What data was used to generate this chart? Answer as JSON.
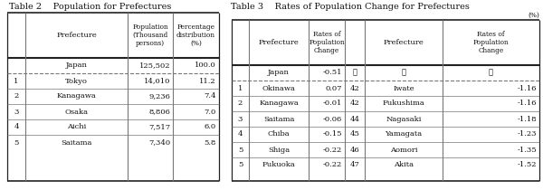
{
  "table2_title": "Table 2    Population for Prefectures",
  "table3_title": "Table 3    Rates of Population Change for Prefectures",
  "table3_unit": "(%)",
  "table2_rows_body": [
    [
      "1",
      "Tokyo",
      "14,010",
      "11.2"
    ],
    [
      "2",
      "Kanagawa",
      "9,236",
      "7.4"
    ],
    [
      "3",
      "Osaka",
      "8,806",
      "7.0"
    ],
    [
      "4",
      "Aichi",
      "7,517",
      "6.0"
    ],
    [
      "5",
      "Saitama",
      "7,340",
      "5.8"
    ]
  ],
  "table3_rows_body": [
    [
      "1",
      "Okinawa",
      "0.07",
      "42",
      "Iwate",
      "-1.16"
    ],
    [
      "2",
      "Kanagawa",
      "-0.01",
      "42",
      "Fukushima",
      "-1.16"
    ],
    [
      "3",
      "Saitama",
      "-0.06",
      "44",
      "Nagasaki",
      "-1.18"
    ],
    [
      "4",
      "Chiba",
      "-0.15",
      "45",
      "Yamagata",
      "-1.23"
    ],
    [
      "5",
      "Shiga",
      "-0.22",
      "46",
      "Aomori",
      "-1.35"
    ],
    [
      "5",
      "Fukuoka",
      "-0.22",
      "47",
      "Akita",
      "-1.52"
    ]
  ],
  "bg_color": "#ffffff",
  "text_color": "#111111",
  "line_color_heavy": "#222222",
  "line_color_light": "#777777",
  "font_size": 6.0,
  "small_font_size": 5.3,
  "title_font_size": 7.0
}
